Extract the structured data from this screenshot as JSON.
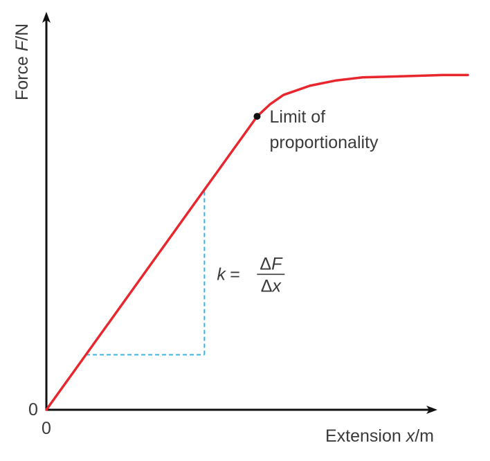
{
  "chart_data": {
    "type": "line",
    "title": "",
    "xlabel": {
      "prefix": "Extension ",
      "symbol": "x",
      "unit": "/m"
    },
    "ylabel": {
      "prefix": "Force ",
      "symbol": "F",
      "unit": "/N"
    },
    "origin_labels": {
      "x": "0",
      "y": "0"
    },
    "grid": false,
    "series": [
      {
        "color": "#e8262d",
        "points": [
          {
            "x": 0.0,
            "y": 0.0
          },
          {
            "x": 0.1,
            "y": 0.12
          },
          {
            "x": 0.2,
            "y": 0.24
          },
          {
            "x": 0.3,
            "y": 0.36
          },
          {
            "x": 0.4,
            "y": 0.48
          },
          {
            "x": 0.5,
            "y": 0.6
          },
          {
            "x": 0.6,
            "y": 0.72
          },
          {
            "x": 0.7,
            "y": 0.84
          },
          {
            "x": 0.8,
            "y": 0.96
          },
          {
            "x": 0.9,
            "y": 1.08
          },
          {
            "x": 1.0,
            "y": 1.2
          },
          {
            "x": 1.1,
            "y": 1.32
          },
          {
            "x": 1.2,
            "y": 1.44
          },
          {
            "x": 1.3,
            "y": 1.56
          },
          {
            "x": 1.4,
            "y": 1.68
          },
          {
            "x": 1.5,
            "y": 1.8
          },
          {
            "x": 1.6,
            "y": 1.92
          },
          {
            "x": 1.7,
            "y": 2.0
          },
          {
            "x": 1.8,
            "y": 2.06
          },
          {
            "x": 2.0,
            "y": 2.12
          },
          {
            "x": 2.2,
            "y": 2.155
          },
          {
            "x": 2.4,
            "y": 2.175
          },
          {
            "x": 2.6,
            "y": 2.18
          },
          {
            "x": 2.8,
            "y": 2.185
          },
          {
            "x": 3.0,
            "y": 2.19
          },
          {
            "x": 3.2,
            "y": 2.19
          }
        ]
      }
    ],
    "xlim": [
      0,
      3.3
    ],
    "ylim": [
      0,
      2.5
    ],
    "limit_point": {
      "x": 1.6,
      "y": 1.92,
      "label_lines": [
        "Limit of",
        "proportionality"
      ],
      "color": "#111111"
    },
    "gradient_triangle": {
      "x1": 0.3,
      "y1": 0.36,
      "x2": 1.2,
      "y2": 1.44,
      "color": "#39b3e0"
    },
    "formula": {
      "lhs": "k",
      "equals": " = ",
      "numerator": "ΔF",
      "denominator": "Δx"
    }
  }
}
